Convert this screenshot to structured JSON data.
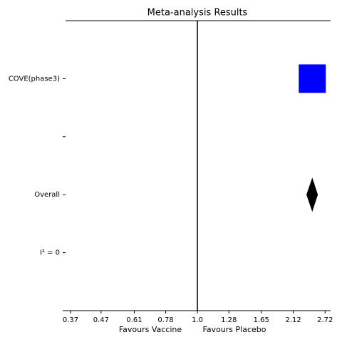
{
  "chart_data": {
    "type": "forest",
    "title": "Meta-analysis Results",
    "x_labels": [
      "Favours Vaccine",
      "Favours Placebo"
    ],
    "categories": [
      "COVE(phase3)",
      null,
      "Overall",
      "I² = 0"
    ],
    "values": [
      2.46,
      null,
      2.46,
      null
    ],
    "lower": [
      null,
      null,
      2.35,
      null
    ],
    "upper": [
      null,
      null,
      2.57,
      null
    ],
    "study_color": "#0000ff",
    "overall_color": "#000000",
    "reference": 1,
    "xscale": "log",
    "xlim": [
      0.348,
      2.84
    ],
    "xticks": [
      0.37,
      0.47,
      0.61,
      0.78,
      {
        "value": 1,
        "label": "1.0"
      },
      1.28,
      1.65,
      2.12,
      2.72
    ]
  }
}
